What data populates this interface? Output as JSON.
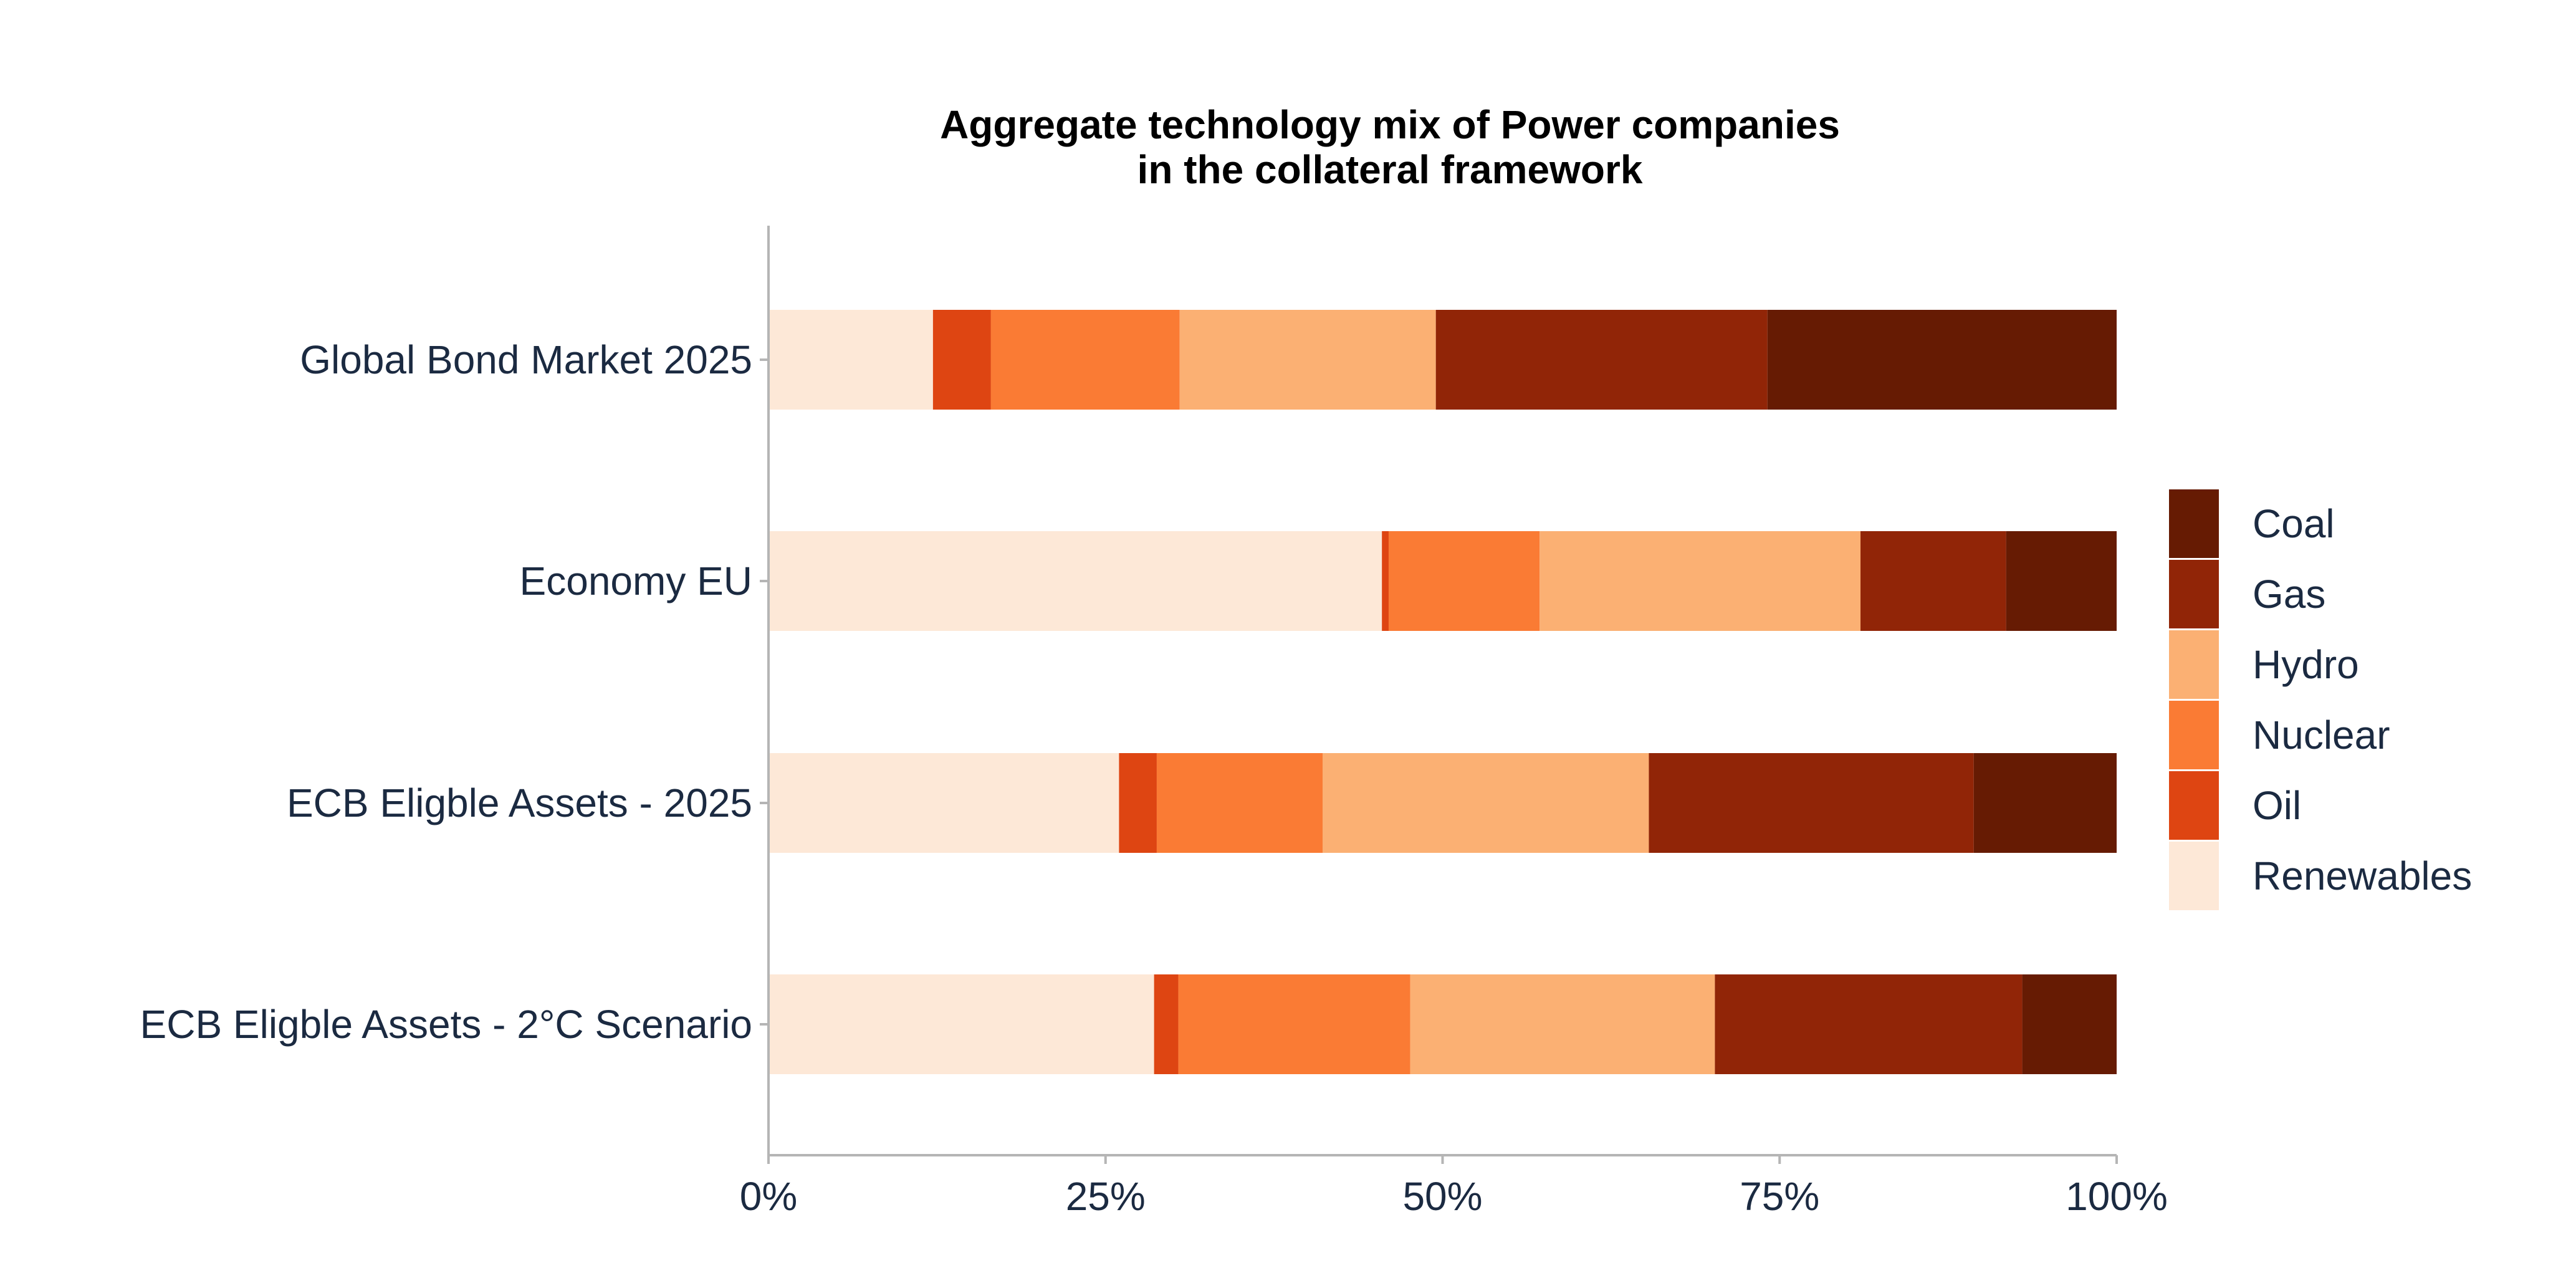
{
  "chart_data": {
    "type": "bar",
    "orientation": "horizontal",
    "stacked": true,
    "title": "Aggregate technology mix of Power companies",
    "subtitle": "in the collateral framework",
    "xlabel": "",
    "ylabel": "",
    "xlim": [
      0,
      100
    ],
    "x_ticks": [
      "0%",
      "25%",
      "50%",
      "75%",
      "100%"
    ],
    "x_tick_values": [
      0,
      25,
      50,
      75,
      100
    ],
    "grid": false,
    "legend_position": "right",
    "categories": [
      "Global Bond Market 2025",
      "Economy EU",
      "ECB Eligble Assets - 2025",
      "ECB Eligble Assets - 2°C Scenario"
    ],
    "series": [
      {
        "name": "Renewables",
        "color": "#fde8d7",
        "values": [
          12.2,
          45.5,
          26.0,
          28.6
        ]
      },
      {
        "name": "Oil",
        "color": "#de4512",
        "values": [
          4.3,
          0.5,
          2.8,
          1.8
        ]
      },
      {
        "name": "Nuclear",
        "color": "#fa7b34",
        "values": [
          14.0,
          11.2,
          12.3,
          17.2
        ]
      },
      {
        "name": "Hydro",
        "color": "#fbb073",
        "values": [
          19.0,
          23.8,
          24.2,
          22.6
        ]
      },
      {
        "name": "Gas",
        "color": "#912507",
        "values": [
          24.6,
          10.8,
          24.1,
          22.8
        ]
      },
      {
        "name": "Coal",
        "color": "#661b03",
        "values": [
          25.9,
          8.2,
          10.6,
          7.0
        ]
      }
    ],
    "legend_order": [
      "Coal",
      "Gas",
      "Hydro",
      "Nuclear",
      "Oil",
      "Renewables"
    ]
  }
}
